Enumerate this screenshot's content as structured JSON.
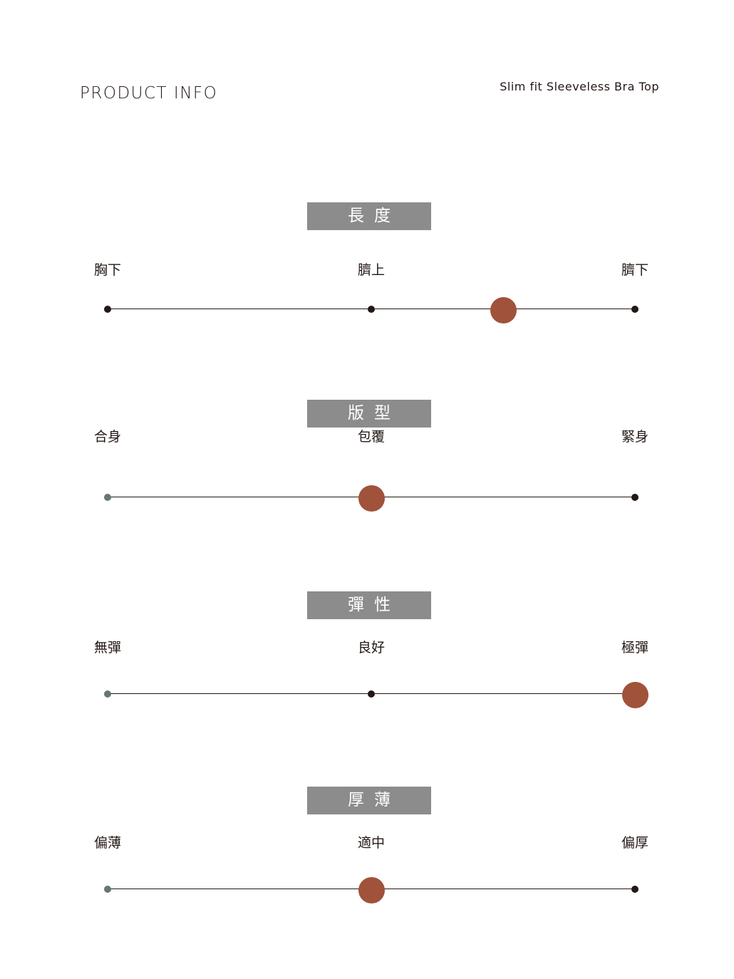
{
  "header": {
    "title": "PRODUCT INFO",
    "product_name": "Slim fit Sleeveless Bra Top"
  },
  "accent_color": "#a0523a",
  "badge_color": "#8c8c8c",
  "sections": [
    {
      "title": "長度",
      "labels": [
        "胸下",
        "臍上",
        "臍下"
      ],
      "value": 0.75
    },
    {
      "title": "版型",
      "labels": [
        "合身",
        "包覆",
        "緊身"
      ],
      "value": 0.5
    },
    {
      "title": "彈性",
      "labels": [
        "無彈",
        "良好",
        "極彈"
      ],
      "value": 1.0
    },
    {
      "title": "厚薄",
      "labels": [
        "偏薄",
        "適中",
        "偏厚"
      ],
      "value": 0.5
    }
  ]
}
